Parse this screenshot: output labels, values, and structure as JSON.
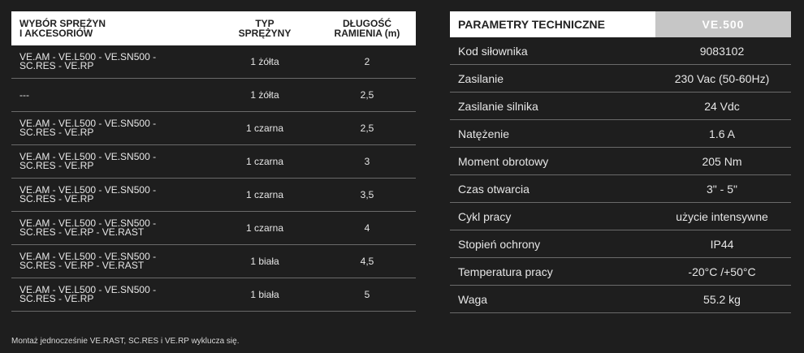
{
  "left_table": {
    "headers": {
      "col1": "WYBÓR SPRĘŻYN\nI AKCESORIÓW",
      "col2": "TYP\nSPRĘŻYNY",
      "col3": "DŁUGOŚĆ\nRAMIENIA (m)"
    },
    "rows": [
      {
        "accessories": "VE.AM - VE.L500 - VE.SN500 -\nSC.RES - VE.RP",
        "spring": "1 żółta",
        "length": "2"
      },
      {
        "accessories": "---",
        "spring": "1 żółta",
        "length": "2,5"
      },
      {
        "accessories": "VE.AM - VE.L500 - VE.SN500 -\nSC.RES - VE.RP",
        "spring": "1 czarna",
        "length": "2,5"
      },
      {
        "accessories": "VE.AM - VE.L500 - VE.SN500 -\nSC.RES - VE.RP",
        "spring": "1 czarna",
        "length": "3"
      },
      {
        "accessories": "VE.AM - VE.L500 - VE.SN500 -\nSC.RES - VE.RP",
        "spring": "1 czarna",
        "length": "3,5"
      },
      {
        "accessories": "VE.AM - VE.L500 - VE.SN500 -\nSC.RES - VE.RP - VE.RAST",
        "spring": "1 czarna",
        "length": "4"
      },
      {
        "accessories": "VE.AM - VE.L500 - VE.SN500 -\nSC.RES - VE.RP - VE.RAST",
        "spring": "1 biała",
        "length": "4,5"
      },
      {
        "accessories": "VE.AM - VE.L500 - VE.SN500 -\nSC.RES - VE.RP",
        "spring": "1 biała",
        "length": "5"
      }
    ],
    "note": "Montaż jednocześnie VE.RAST, SC.RES i VE.RP  wyklucza się."
  },
  "right_table": {
    "title": "PARAMETRY TECHNICZNE",
    "model": "VE.500",
    "rows": [
      {
        "key": "Kod siłownika",
        "value": "9083102"
      },
      {
        "key": "Zasilanie",
        "value": "230 Vac (50-60Hz)"
      },
      {
        "key": "Zasilanie silnika",
        "value": "24 Vdc"
      },
      {
        "key": "Natężenie",
        "value": "1.6 A"
      },
      {
        "key": "Moment obrotowy",
        "value": "205 Nm"
      },
      {
        "key": "Czas otwarcia",
        "value": "3\" - 5\""
      },
      {
        "key": "Cykl pracy",
        "value": "użycie intensywne"
      },
      {
        "key": "Stopień ochrony",
        "value": "IP44"
      },
      {
        "key": "Temperatura pracy",
        "value": "-20°C /+50°C"
      },
      {
        "key": "Waga",
        "value": "55.2 kg"
      }
    ]
  },
  "colors": {
    "background": "#1e1e1e",
    "header_bg": "#ffffff",
    "model_bg": "#c6c6c6",
    "text": "#e6e6e6",
    "divider": "#6a6a6a"
  }
}
